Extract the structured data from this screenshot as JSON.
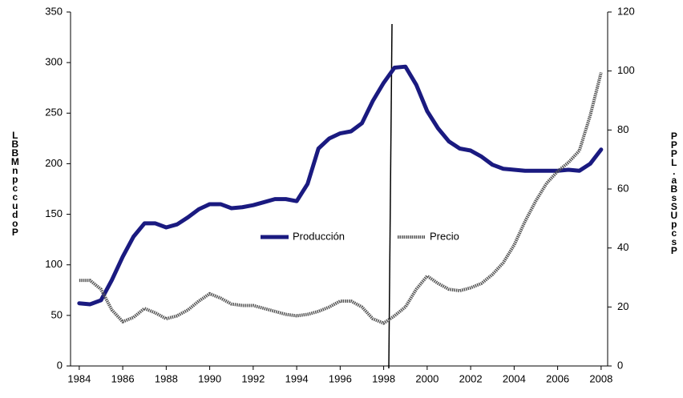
{
  "chart_data": {
    "type": "line",
    "y_label": "LBBMnpccudoP",
    "y2_label": "PPPL.aBsSUpcsP",
    "x": [
      1984,
      1984.5,
      1985,
      1985.5,
      1986,
      1986.5,
      1987,
      1987.5,
      1988,
      1988.5,
      1989,
      1989.5,
      1990,
      1990.5,
      1991,
      1991.5,
      1992,
      1992.5,
      1993,
      1993.5,
      1994,
      1994.5,
      1995,
      1995.5,
      1996,
      1996.5,
      1997,
      1997.5,
      1998,
      1998.5,
      1999,
      1999.5,
      2000,
      2000.5,
      2001,
      2001.5,
      2002,
      2002.5,
      2003,
      2003.5,
      2004,
      2004.5,
      2005,
      2005.5,
      2006,
      2006.5,
      2007,
      2007.5,
      2008
    ],
    "series": [
      {
        "name": "Producción",
        "color": "#1a1a80",
        "axis": "y",
        "values": [
          62,
          61,
          65,
          85,
          108,
          128,
          141,
          141,
          137,
          140,
          147,
          155,
          160,
          160,
          156,
          157,
          159,
          162,
          165,
          165,
          163,
          180,
          215,
          225,
          230,
          232,
          240,
          262,
          280,
          295,
          296,
          278,
          252,
          235,
          222,
          215,
          213,
          207,
          199,
          195,
          194,
          193,
          193,
          193,
          193,
          194,
          193,
          200,
          214
        ]
      },
      {
        "name": "Precio",
        "color": "#555555",
        "axis": "y2",
        "values": [
          29,
          29,
          26,
          19,
          15,
          16.5,
          19.5,
          18,
          16,
          17,
          19,
          22,
          24.5,
          23,
          21,
          20.5,
          20.5,
          19.5,
          18.5,
          17.5,
          17,
          17.5,
          18.5,
          20,
          22,
          22,
          20,
          16,
          14.5,
          17,
          20,
          26,
          30.5,
          28,
          26,
          25.5,
          26.5,
          28,
          31,
          35,
          41,
          49,
          56,
          62,
          66,
          69,
          73,
          85,
          99.5
        ]
      }
    ],
    "xlim": [
      1983.6,
      2008.3
    ],
    "xticks": [
      1984,
      1986,
      1988,
      1990,
      1992,
      1994,
      1996,
      1998,
      2000,
      2002,
      2004,
      2006,
      2008
    ],
    "ylim": [
      0,
      350
    ],
    "yticks": [
      0,
      50,
      100,
      150,
      200,
      250,
      300,
      350
    ],
    "y2lim": [
      0,
      120
    ],
    "y2ticks": [
      0,
      20,
      40,
      60,
      80,
      100,
      120
    ]
  }
}
